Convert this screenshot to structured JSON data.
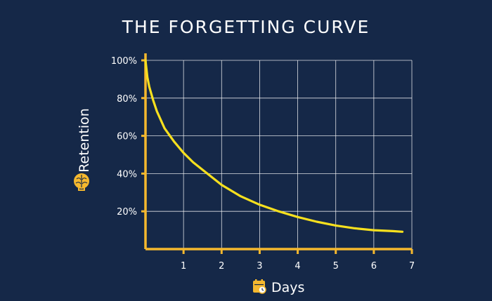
{
  "colors": {
    "background": "#152848",
    "axis": "#f5b82e",
    "curve": "#f7e01e",
    "grid": "#ffffff",
    "text": "#ffffff"
  },
  "icons": {
    "ylabel_icon": "brain-icon",
    "xlabel_icon": "calendar-clock-icon"
  },
  "chart_data": {
    "type": "line",
    "title": "THE FORGETTING CURVE",
    "xlabel": "Days",
    "ylabel": "Retention",
    "xlim": [
      0,
      7
    ],
    "ylim": [
      0,
      100
    ],
    "x_ticks": [
      "1",
      "2",
      "3",
      "4",
      "5",
      "6",
      "7"
    ],
    "y_ticks": [
      "20%",
      "40%",
      "60%",
      "80%",
      "100%"
    ],
    "grid": true,
    "series": [
      {
        "x": [
          0,
          0.05,
          0.1,
          0.2,
          0.3,
          0.5,
          0.75,
          1,
          1.25,
          1.5,
          2,
          2.5,
          3,
          3.5,
          4,
          4.5,
          5,
          5.5,
          6,
          6.5,
          6.75
        ],
        "y": [
          100,
          91,
          86,
          79,
          73,
          64,
          57,
          51,
          46,
          42,
          34,
          28,
          23.5,
          20,
          17,
          14.5,
          12.5,
          11,
          10,
          9.5,
          9.2
        ]
      }
    ]
  }
}
